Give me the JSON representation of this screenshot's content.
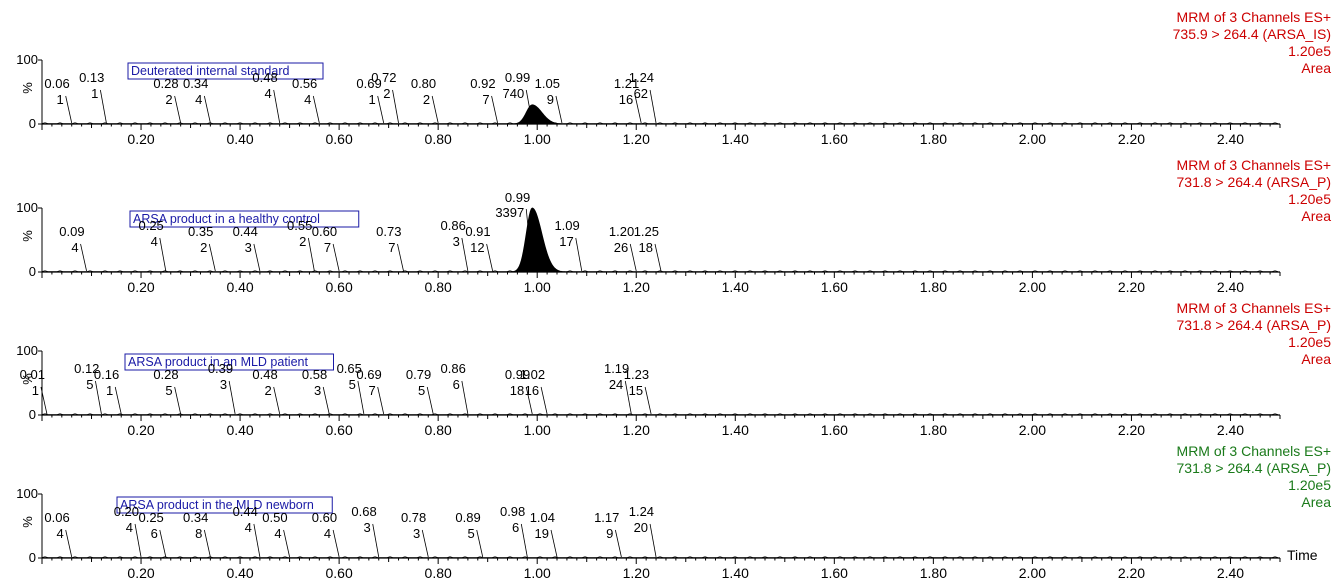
{
  "x_axis_label": "Time",
  "panels": [
    {
      "label": "Deuterated internal standard",
      "header": [
        "MRM of 3 Channels ES+",
        "735.9 > 264.4 (ARSA_IS)",
        "1.20e5",
        "Area"
      ],
      "header_color": "#cc0000",
      "ymax_label": "100",
      "ypct_label": "%",
      "yzero_label": "0",
      "peak": {
        "center": 0.99,
        "height_pct": 30,
        "width": 0.012
      },
      "annotations": [
        {
          "t": "0.06",
          "a": "1"
        },
        {
          "t": "0.13",
          "a": "1"
        },
        {
          "t": "0.28",
          "a": "2"
        },
        {
          "t": "0.34",
          "a": "4"
        },
        {
          "t": "0.48",
          "a": "4"
        },
        {
          "t": "0.56",
          "a": "4"
        },
        {
          "t": "0.69",
          "a": "1"
        },
        {
          "t": "0.72",
          "a": "2"
        },
        {
          "t": "0.80",
          "a": "2"
        },
        {
          "t": "0.92",
          "a": "7"
        },
        {
          "t": "0.99",
          "a": "740"
        },
        {
          "t": "1.05",
          "a": "9"
        },
        {
          "t": "1.21",
          "a": "16"
        },
        {
          "t": "1.24",
          "a": "62"
        }
      ]
    },
    {
      "label": "ARSA product in a healthy control",
      "header": [
        "MRM of 3 Channels ES+",
        "731.8 > 264.4 (ARSA_P)",
        "1.20e5",
        "Area"
      ],
      "header_color": "#cc0000",
      "ymax_label": "100",
      "ypct_label": "%",
      "yzero_label": "0",
      "peak": {
        "center": 0.99,
        "height_pct": 100,
        "width": 0.012
      },
      "annotations": [
        {
          "t": "0.09",
          "a": "4"
        },
        {
          "t": "0.25",
          "a": "4"
        },
        {
          "t": "0.35",
          "a": "2"
        },
        {
          "t": "0.44",
          "a": "3"
        },
        {
          "t": "0.55",
          "a": "2"
        },
        {
          "t": "0.60",
          "a": "7"
        },
        {
          "t": "0.73",
          "a": "7"
        },
        {
          "t": "0.86",
          "a": "3"
        },
        {
          "t": "0.91",
          "a": "12"
        },
        {
          "t": "0.99",
          "a": "3397"
        },
        {
          "t": "1.09",
          "a": "17"
        },
        {
          "t": "1.20",
          "a": "26"
        },
        {
          "t": "1.25",
          "a": "18"
        }
      ]
    },
    {
      "label": "ARSA product in an MLD patient",
      "header": [
        "MRM of 3 Channels ES+",
        "731.8 > 264.4 (ARSA_P)",
        "1.20e5",
        "Area"
      ],
      "header_color": "#cc0000",
      "ymax_label": "100",
      "ypct_label": "%",
      "yzero_label": "0",
      "peak": null,
      "annotations": [
        {
          "t": "0.01",
          "a": "1"
        },
        {
          "t": "0.12",
          "a": "5"
        },
        {
          "t": "0.16",
          "a": "1"
        },
        {
          "t": "0.28",
          "a": "5"
        },
        {
          "t": "0.39",
          "a": "3"
        },
        {
          "t": "0.48",
          "a": "2"
        },
        {
          "t": "0.58",
          "a": "3"
        },
        {
          "t": "0.65",
          "a": "5"
        },
        {
          "t": "0.69",
          "a": "7"
        },
        {
          "t": "0.79",
          "a": "5"
        },
        {
          "t": "0.86",
          "a": "6"
        },
        {
          "t": "0.99",
          "a": "18"
        },
        {
          "t": "1.02",
          "a": "16"
        },
        {
          "t": "1.19",
          "a": "24"
        },
        {
          "t": "1.23",
          "a": "15"
        }
      ]
    },
    {
      "label": "ARSA product in the MLD newborn",
      "header": [
        "MRM of 3 Channels ES+",
        "731.8 > 264.4 (ARSA_P)",
        "1.20e5",
        "Area"
      ],
      "header_color": "#1a7a1a",
      "ymax_label": "100",
      "ypct_label": "%",
      "yzero_label": "0",
      "peak": null,
      "annotations": [
        {
          "t": "0.06",
          "a": "4"
        },
        {
          "t": "0.20",
          "a": "4"
        },
        {
          "t": "0.25",
          "a": "6"
        },
        {
          "t": "0.34",
          "a": "8"
        },
        {
          "t": "0.44",
          "a": "4"
        },
        {
          "t": "0.50",
          "a": "4"
        },
        {
          "t": "0.60",
          "a": "4"
        },
        {
          "t": "0.68",
          "a": "3"
        },
        {
          "t": "0.78",
          "a": "3"
        },
        {
          "t": "0.89",
          "a": "5"
        },
        {
          "t": "0.98",
          "a": "6"
        },
        {
          "t": "1.04",
          "a": "19"
        },
        {
          "t": "1.17",
          "a": "9"
        },
        {
          "t": "1.24",
          "a": "20"
        }
      ]
    }
  ],
  "chart_data": {
    "type": "line",
    "xlabel": "Time",
    "ylabel": "%",
    "xlim": [
      0.0,
      2.5
    ],
    "ylim": [
      0,
      100
    ],
    "x_ticks": [
      "0.20",
      "0.40",
      "0.60",
      "0.80",
      "1.00",
      "1.20",
      "1.40",
      "1.60",
      "1.80",
      "2.00",
      "2.20",
      "2.40"
    ],
    "series": [
      {
        "name": "Deuterated internal standard",
        "peak_x": 0.99,
        "peak_area": 740
      },
      {
        "name": "ARSA product in a healthy control",
        "peak_x": 0.99,
        "peak_area": 3397
      },
      {
        "name": "ARSA product in an MLD patient",
        "peak_x": 0.99,
        "peak_area": 18
      },
      {
        "name": "ARSA product in the MLD newborn",
        "peak_x": 0.98,
        "peak_area": 6
      }
    ]
  }
}
